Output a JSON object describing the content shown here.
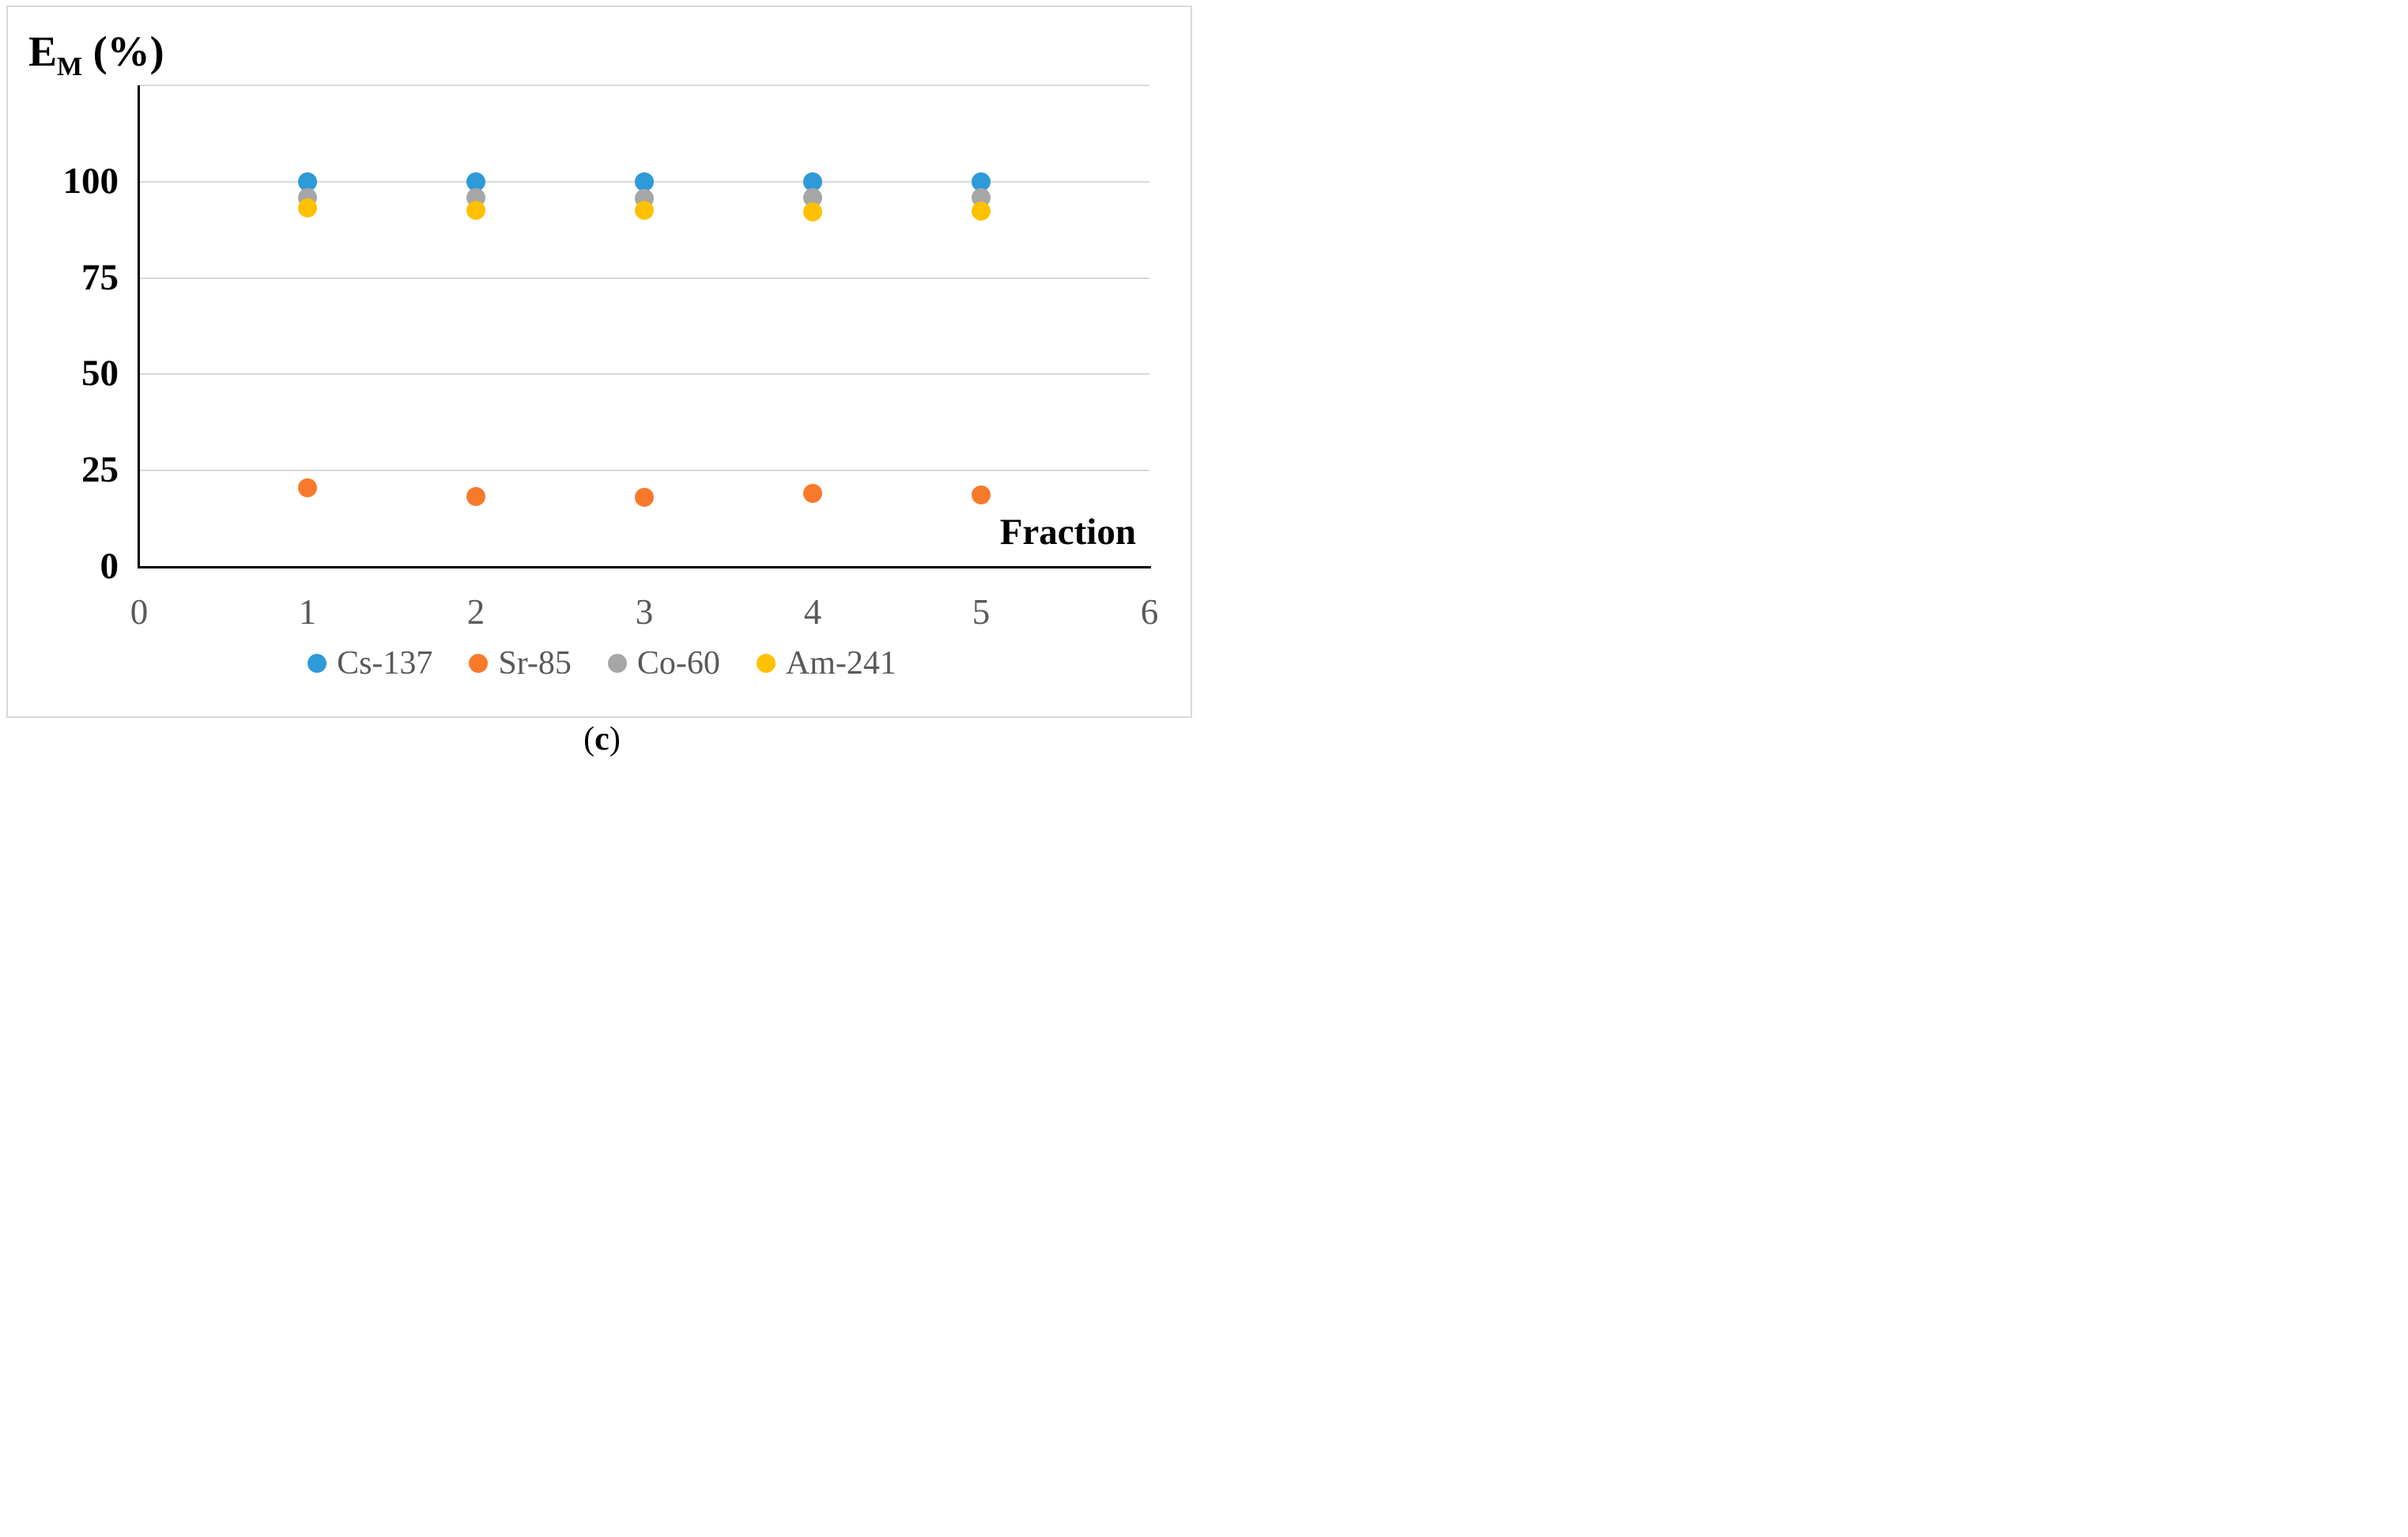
{
  "figure": {
    "y_title_main": "E",
    "y_title_sub": "M",
    "y_title_unit": " (%)",
    "x_axis_title": "Fraction",
    "caption": {
      "open": "(",
      "letter": "c",
      "close": ")"
    }
  },
  "chart_data": {
    "type": "scatter",
    "x": [
      1,
      2,
      3,
      4,
      5
    ],
    "series": [
      {
        "name": "Cs-137",
        "color": "#2E9AD8",
        "values": [
          100,
          100,
          100,
          100,
          100
        ]
      },
      {
        "name": "Sr-85",
        "color": "#F8792B",
        "values": [
          20.5,
          18.2,
          18.1,
          19.0,
          18.6
        ]
      },
      {
        "name": "Co-60",
        "color": "#A6A6A6",
        "values": [
          95.8,
          95.8,
          95.7,
          95.8,
          95.8
        ]
      },
      {
        "name": "Am-241",
        "color": "#FFC000",
        "values": [
          93.1,
          92.6,
          92.6,
          92.2,
          92.4
        ]
      }
    ],
    "title": "",
    "xlabel": "Fraction",
    "ylabel": "EM (%)",
    "xlim": [
      0,
      6
    ],
    "ylim": [
      0,
      125
    ],
    "x_ticks": [
      0,
      1,
      2,
      3,
      4,
      5,
      6
    ],
    "y_ticks": [
      0,
      25,
      50,
      75,
      100
    ],
    "gridline_values": [
      25,
      50,
      75,
      100,
      125
    ],
    "grid": "horizontal",
    "legend_position": "bottom",
    "marker": "circle"
  },
  "colors": {
    "gridline": "#D9D9D9",
    "axis": "#000000",
    "y_tick_text": "#000000",
    "x_tick_text": "#595959",
    "legend_text": "#595959",
    "outer_border": "#D9D9D9",
    "background": "#FFFFFF"
  }
}
